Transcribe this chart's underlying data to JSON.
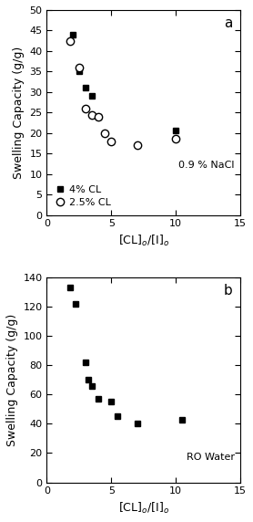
{
  "panel_a": {
    "squares_x": [
      2.0,
      2.5,
      3.0,
      3.5,
      4.0,
      10.0
    ],
    "squares_y": [
      44.0,
      35.0,
      31.0,
      29.0,
      24.0,
      20.5
    ],
    "circles_x": [
      1.8,
      2.5,
      3.0,
      3.5,
      4.0,
      4.5,
      5.0,
      7.0,
      10.0
    ],
    "circles_y": [
      42.5,
      36.0,
      26.0,
      24.5,
      24.0,
      20.0,
      18.0,
      17.0,
      18.5
    ],
    "xlabel": "[CL]$_o$/[I]$_o$",
    "ylabel": "Swelling Capacity (g/g)",
    "label_a": "a",
    "legend_sq": "4% CL",
    "legend_ci": "2.5% CL",
    "annotation": "0.9 % NaCl",
    "xlim": [
      1,
      15
    ],
    "ylim": [
      0,
      50
    ],
    "xticks": [
      0,
      5,
      10,
      15
    ],
    "yticks": [
      0,
      5,
      10,
      15,
      20,
      25,
      30,
      35,
      40,
      45,
      50
    ]
  },
  "panel_b": {
    "squares_x": [
      1.8,
      2.2,
      3.0,
      3.2,
      3.5,
      4.0,
      5.0,
      5.5,
      7.0,
      10.5
    ],
    "squares_y": [
      133.0,
      122.0,
      82.0,
      70.0,
      66.0,
      57.0,
      55.0,
      45.0,
      40.0,
      43.0
    ],
    "xlabel": "[CL]$_o$/[I]$_o$",
    "ylabel": "Swelling Capacity (g/g)",
    "label_b": "b",
    "annotation": "RO Water",
    "xlim": [
      1,
      15
    ],
    "ylim": [
      0,
      140
    ],
    "xticks": [
      0,
      5,
      10,
      15
    ],
    "yticks": [
      0,
      20,
      40,
      60,
      80,
      100,
      120,
      140
    ]
  },
  "bg_color": "#ffffff",
  "plot_bg": "#ffffff"
}
